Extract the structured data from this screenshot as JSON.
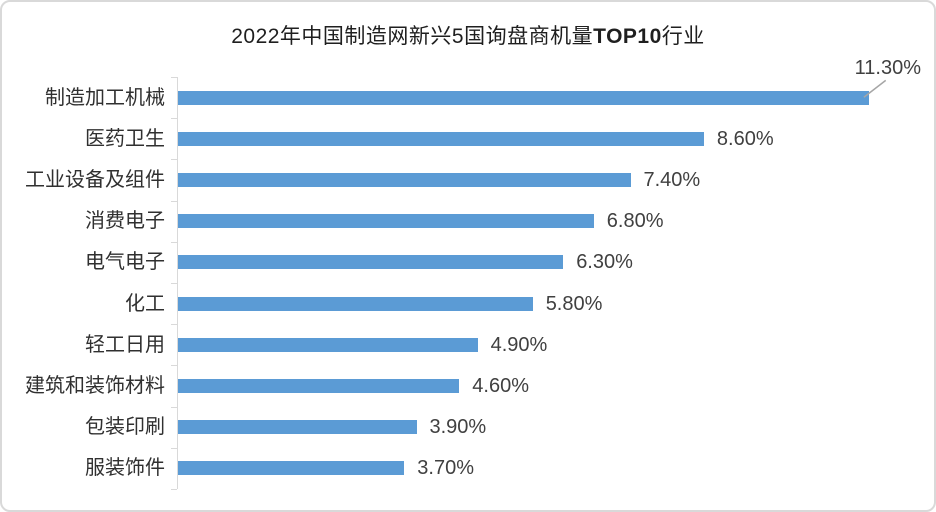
{
  "frame": {
    "background_color": "#ffffff",
    "border_color": "#d9d9d9"
  },
  "chart_data": {
    "type": "bar",
    "orientation": "horizontal",
    "title": "2022年中国制造网新兴5国询盘商机量TOP10行业",
    "title_parts": {
      "prefix": "2022年中国制造网新兴5国询盘商机量",
      "bold": "TOP10",
      "suffix": "行业"
    },
    "categories": [
      "制造加工机械",
      "医药卫生",
      "工业设备及组件",
      "消费电子",
      "电气电子",
      "化工",
      "轻工日用",
      "建筑和装饰材料",
      "包装印刷",
      "服装饰件"
    ],
    "values": [
      11.3,
      8.6,
      7.4,
      6.8,
      6.3,
      5.8,
      4.9,
      4.6,
      3.9,
      3.7
    ],
    "value_labels": [
      "11.30%",
      "8.60%",
      "7.40%",
      "6.80%",
      "6.30%",
      "5.80%",
      "4.90%",
      "4.60%",
      "3.90%",
      "3.70%"
    ],
    "xlabel": "",
    "ylabel": "",
    "xlim": [
      0,
      12.2
    ],
    "gridlines": false,
    "value_axis_visible": false,
    "legend": false,
    "bar_color": "#5b9bd5",
    "axis_color": "#d9d9d9",
    "label_color": "#404040",
    "leader_line_color": "#a6a6a6",
    "first_label_is_callout": true
  }
}
